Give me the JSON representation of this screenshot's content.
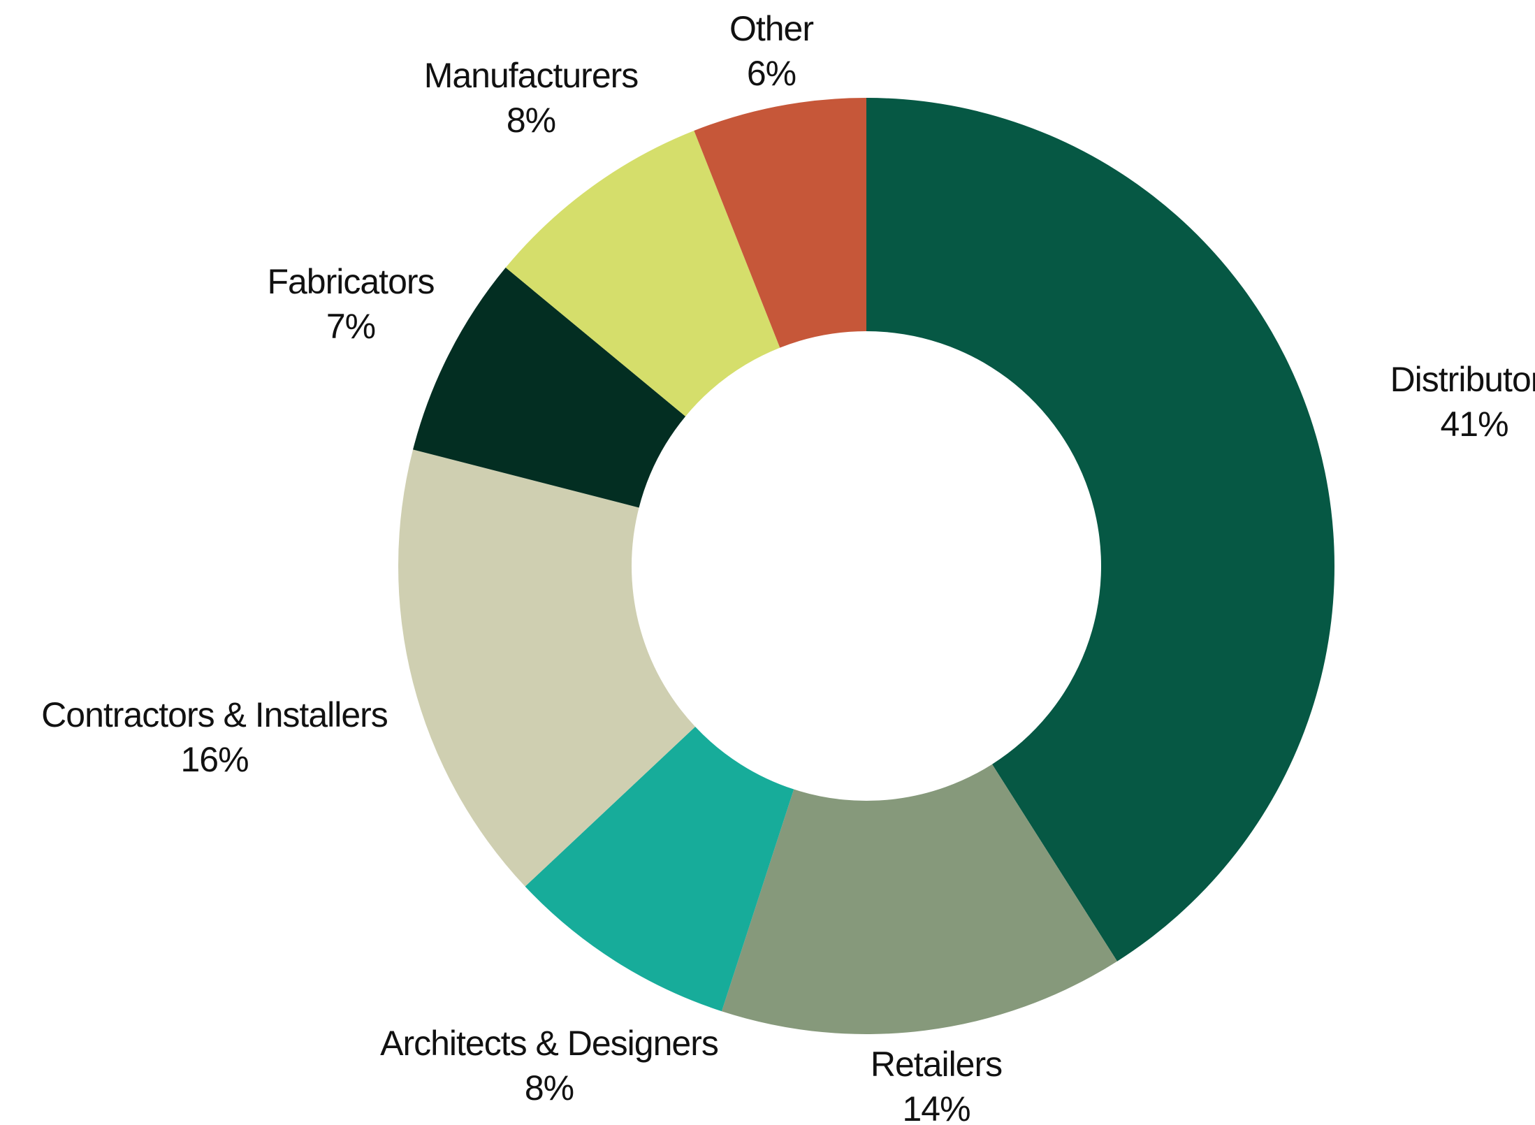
{
  "chart_data": {
    "type": "pie",
    "variant": "donut",
    "title": "",
    "start": "12 o'clock",
    "direction": "clockwise",
    "slices": [
      {
        "label": "Distributors",
        "value": 41,
        "value_label": "41%",
        "color": "#065844"
      },
      {
        "label": "Retailers",
        "value": 14,
        "value_label": "14%",
        "color": "#86997B"
      },
      {
        "label": "Architects & Designers",
        "value": 8,
        "value_label": "8%",
        "color": "#17AC9A"
      },
      {
        "label": "Contractors & Installers",
        "value": 16,
        "value_label": "16%",
        "color": "#CFCFB1"
      },
      {
        "label": "Fabricators",
        "value": 7,
        "value_label": "7%",
        "color": "#032E22"
      },
      {
        "label": "Manufacturers",
        "value": 8,
        "value_label": "8%",
        "color": "#D5DE6B"
      },
      {
        "label": "Other",
        "value": 6,
        "value_label": "6%",
        "color": "#C65739"
      }
    ]
  }
}
